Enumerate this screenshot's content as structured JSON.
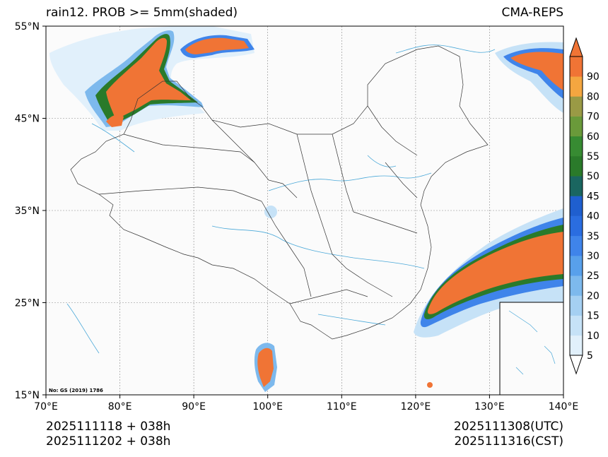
{
  "header": {
    "title": "rain12. PROB >= 5mm(shaded)",
    "model": "CMA-REPS"
  },
  "footer": {
    "init_utc": "2025111118  +  038h",
    "init_cst": "2025111202  +  038h",
    "valid_utc": "2025111308(UTC)",
    "valid_cst": "2025111316(CST)"
  },
  "map": {
    "lon_ticks": [
      "70°E",
      "80°E",
      "90°E",
      "100°E",
      "110°E",
      "120°E",
      "130°E",
      "140°E"
    ],
    "lat_ticks": [
      "55°N",
      "45°N",
      "35°N",
      "25°N",
      "15°N"
    ],
    "approval_no": "No: GS (2019) 1786",
    "extent": {
      "lon": [
        70,
        140
      ],
      "lat": [
        15,
        55
      ]
    }
  },
  "colorbar": {
    "levels": [
      "5",
      "10",
      "15",
      "20",
      "25",
      "30",
      "35",
      "40",
      "45",
      "50",
      "55",
      "60",
      "70",
      "80",
      "90"
    ],
    "colors": [
      "#e1f0fb",
      "#c6e2f7",
      "#a5d0f2",
      "#7db9ed",
      "#58a0eb",
      "#3f84ea",
      "#2a6de0",
      "#1f5fcf",
      "#1a6660",
      "#2a7a2a",
      "#378b32",
      "#6a9a3a",
      "#9a9a45",
      "#f4a640",
      "#f07435"
    ],
    "extend": "both"
  },
  "colors": {
    "orange": "#f07435",
    "dark_green": "#2a7a2a",
    "blue": "#3f84ea",
    "light_blue": "#c6e2f7",
    "river": "#4aa8d8"
  }
}
